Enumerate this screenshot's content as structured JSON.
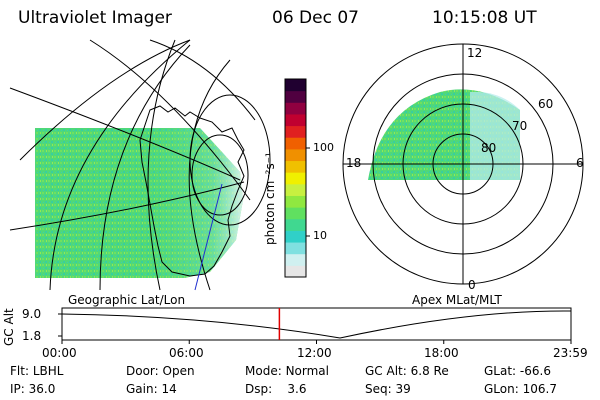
{
  "header": {
    "instrument": "Ultraviolet Imager",
    "date": "06 Dec 07",
    "time": "10:15:08 UT"
  },
  "colorbar": {
    "label": "photon cm⁻²s⁻¹",
    "ticks": [
      {
        "label": "100",
        "value": 100
      },
      {
        "label": "10",
        "value": 10
      }
    ],
    "colors": [
      "#e6e6e6",
      "#d0f0f0",
      "#80e0e0",
      "#30d0c8",
      "#40d890",
      "#60e060",
      "#90e840",
      "#c8f040",
      "#f0f000",
      "#f0c000",
      "#f09000",
      "#f06000",
      "#e02020",
      "#c00030",
      "#900040",
      "#500040",
      "#200030"
    ]
  },
  "left_panel": {
    "caption": "Geographic Lat/Lon"
  },
  "right_panel": {
    "caption": "Apex MLat/MLT",
    "mlt_labels": [
      "12",
      "18",
      "6",
      "0"
    ],
    "mlat_labels": [
      "60",
      "70",
      "80"
    ]
  },
  "alt_plot": {
    "ylabel": "GC Alt",
    "yticks": [
      "9.0",
      "1.8"
    ],
    "xticks": [
      "00:00",
      "06:00",
      "12:00",
      "18:00",
      "23:59"
    ],
    "current_time_hours": 10.25,
    "current_marker_color": "#e00000"
  },
  "footer": {
    "row1": [
      {
        "label": "Flt:",
        "value": "LBHL"
      },
      {
        "label": "Door:",
        "value": "Open"
      },
      {
        "label": "Mode:",
        "value": "Normal"
      },
      {
        "label": "GC Alt:",
        "value": "6.8 Re"
      },
      {
        "label": "GLat:",
        "value": "-66.6"
      }
    ],
    "row2": [
      {
        "label": "IP:",
        "value": "36.0"
      },
      {
        "label": "Gain:",
        "value": "14"
      },
      {
        "label": "Dsp:",
        "value": "3.6"
      },
      {
        "label": "Seq:",
        "value": "39"
      },
      {
        "label": "GLon:",
        "value": "106.7"
      }
    ]
  }
}
